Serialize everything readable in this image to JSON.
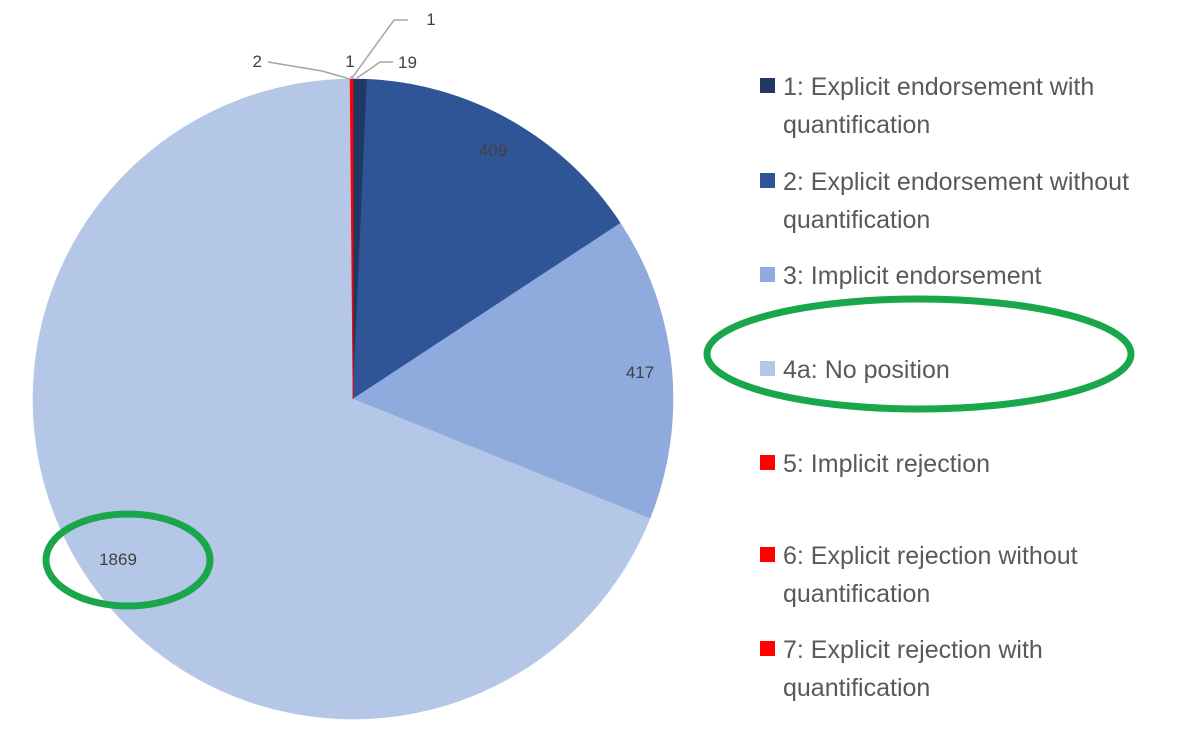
{
  "chart_data": {
    "type": "pie",
    "title": "",
    "slices": [
      {
        "label": "1: Explicit endorsement with quantification",
        "value": 19,
        "color": "#1f3864",
        "value_label": "19"
      },
      {
        "label": "2: Explicit endorsement without quantification",
        "value": 409,
        "color": "#2f5597",
        "value_label": "409"
      },
      {
        "label": "3: Implicit endorsement",
        "value": 417,
        "color": "#8faadc",
        "value_label": "417"
      },
      {
        "label": "4a: No position",
        "value": 1869,
        "color": "#b4c7e7",
        "value_label": "1869"
      },
      {
        "label": "5: Implicit rejection",
        "value": 2,
        "color": "#ff0000",
        "value_label": "2"
      },
      {
        "label": "6: Explicit rejection without quantification",
        "value": 1,
        "color": "#ff0000",
        "value_label": "1"
      },
      {
        "label": "7: Explicit rejection with quantification",
        "value": 1,
        "color": "#ff0000",
        "value_label": "1"
      }
    ],
    "legend": {
      "placement": "right",
      "entries": [
        {
          "lines": [
            "1: Explicit endorsement with",
            "quantification"
          ],
          "color": "#1f3864"
        },
        {
          "lines": [
            "2: Explicit endorsement without",
            "quantification"
          ],
          "color": "#2f5597"
        },
        {
          "lines": [
            "3: Implicit endorsement"
          ],
          "color": "#8faadc"
        },
        {
          "lines": [
            "4a: No position"
          ],
          "color": "#b4c7e7"
        },
        {
          "lines": [
            "5: Implicit rejection"
          ],
          "color": "#ff0000"
        },
        {
          "lines": [
            "6: Explicit rejection without",
            "quantification"
          ],
          "color": "#ff0000"
        },
        {
          "lines": [
            "7: Explicit rejection with",
            "quantification"
          ],
          "color": "#ff0000"
        }
      ]
    },
    "highlight_color": "#1aa64a"
  }
}
